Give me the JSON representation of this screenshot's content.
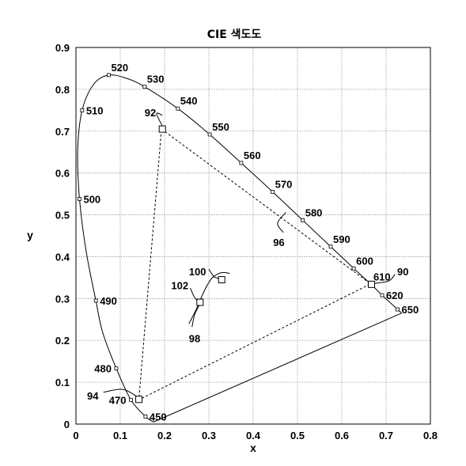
{
  "chart_data": {
    "type": "scatter",
    "title": "CIE 색도도",
    "xlabel": "x",
    "ylabel": "y",
    "xlim": [
      0,
      0.8
    ],
    "ylim": [
      0,
      0.9
    ],
    "x_ticks": [
      {
        "value": 0,
        "label": "0"
      },
      {
        "value": 0.1,
        "label": "0.1"
      },
      {
        "value": 0.2,
        "label": "0.2"
      },
      {
        "value": 0.3,
        "label": "0.3"
      },
      {
        "value": 0.4,
        "label": "0.4"
      },
      {
        "value": 0.5,
        "label": "0.5"
      },
      {
        "value": 0.6,
        "label": "0.6"
      },
      {
        "value": 0.7,
        "label": "0.7"
      },
      {
        "value": 0.8,
        "label": "0.8"
      }
    ],
    "y_ticks": [
      {
        "value": 0,
        "label": "0"
      },
      {
        "value": 0.1,
        "label": "0.1"
      },
      {
        "value": 0.2,
        "label": "0.2"
      },
      {
        "value": 0.3,
        "label": "0.3"
      },
      {
        "value": 0.4,
        "label": "0.4"
      },
      {
        "value": 0.5,
        "label": "0.5"
      },
      {
        "value": 0.6,
        "label": "0.6"
      },
      {
        "value": 0.7,
        "label": "0.7"
      },
      {
        "value": 0.8,
        "label": "0.8"
      },
      {
        "value": 0.9,
        "label": "0.9"
      }
    ],
    "grid": true,
    "spectral_locus": [
      {
        "label": "450",
        "x": 0.157,
        "y": 0.018,
        "side": "right"
      },
      {
        "label": "470",
        "x": 0.124,
        "y": 0.058,
        "side": "left"
      },
      {
        "label": "480",
        "x": 0.091,
        "y": 0.133,
        "side": "left"
      },
      {
        "label": "490",
        "x": 0.045,
        "y": 0.295,
        "side": "right"
      },
      {
        "label": "500",
        "x": 0.008,
        "y": 0.538,
        "side": "right"
      },
      {
        "label": "510",
        "x": 0.014,
        "y": 0.75,
        "side": "right"
      },
      {
        "label": "520",
        "x": 0.074,
        "y": 0.834,
        "side": "above"
      },
      {
        "label": "530",
        "x": 0.155,
        "y": 0.806,
        "side": "above"
      },
      {
        "label": "540",
        "x": 0.23,
        "y": 0.754,
        "side": "above"
      },
      {
        "label": "550",
        "x": 0.302,
        "y": 0.692,
        "side": "above"
      },
      {
        "label": "560",
        "x": 0.373,
        "y": 0.624,
        "side": "above"
      },
      {
        "label": "570",
        "x": 0.444,
        "y": 0.555,
        "side": "above"
      },
      {
        "label": "580",
        "x": 0.512,
        "y": 0.487,
        "side": "above"
      },
      {
        "label": "590",
        "x": 0.575,
        "y": 0.424,
        "side": "above"
      },
      {
        "label": "600",
        "x": 0.627,
        "y": 0.372,
        "side": "above"
      },
      {
        "label": "610",
        "x": 0.666,
        "y": 0.334,
        "side": "above"
      },
      {
        "label": "620",
        "x": 0.691,
        "y": 0.308,
        "side": "right"
      },
      {
        "label": "650",
        "x": 0.726,
        "y": 0.274,
        "side": "right"
      }
    ],
    "locus_curve": [
      [
        0.175,
        0.005
      ],
      [
        0.157,
        0.018
      ],
      [
        0.124,
        0.058
      ],
      [
        0.091,
        0.133
      ],
      [
        0.06,
        0.22
      ],
      [
        0.045,
        0.295
      ],
      [
        0.023,
        0.413
      ],
      [
        0.008,
        0.538
      ],
      [
        0.004,
        0.655
      ],
      [
        0.014,
        0.75
      ],
      [
        0.04,
        0.812
      ],
      [
        0.074,
        0.834
      ],
      [
        0.115,
        0.826
      ],
      [
        0.155,
        0.806
      ],
      [
        0.23,
        0.754
      ],
      [
        0.302,
        0.692
      ],
      [
        0.373,
        0.624
      ],
      [
        0.444,
        0.555
      ],
      [
        0.512,
        0.487
      ],
      [
        0.575,
        0.424
      ],
      [
        0.627,
        0.372
      ],
      [
        0.666,
        0.334
      ],
      [
        0.691,
        0.308
      ],
      [
        0.726,
        0.274
      ],
      [
        0.735,
        0.265
      ]
    ],
    "gamut_triangle": [
      {
        "ref": "92",
        "x": 0.193,
        "y": 0.705
      },
      {
        "ref": "90",
        "x": 0.665,
        "y": 0.335
      },
      {
        "ref": "94",
        "x": 0.142,
        "y": 0.058
      }
    ],
    "reference_labels": [
      {
        "label": "92",
        "at": [
          0.155,
          0.745
        ],
        "leader": [
          [
            0.195,
            0.738
          ],
          [
            0.182,
            0.742
          ],
          [
            0.195,
            0.712
          ]
        ]
      },
      {
        "label": "90",
        "at": [
          0.725,
          0.365
        ],
        "leader": [
          [
            0.72,
            0.358
          ],
          [
            0.706,
            0.342
          ],
          [
            0.672,
            0.336
          ]
        ]
      },
      {
        "label": "94",
        "at": [
          0.025,
          0.068
        ],
        "leader": [
          [
            0.062,
            0.076
          ],
          [
            0.105,
            0.083
          ],
          [
            0.138,
            0.066
          ]
        ]
      },
      {
        "label": "96",
        "at": [
          0.445,
          0.435
        ],
        "leader": [
          [
            0.468,
            0.458
          ],
          [
            0.455,
            0.48
          ],
          [
            0.474,
            0.506
          ]
        ]
      },
      {
        "label": "100",
        "at": [
          0.255,
          0.365
        ],
        "leader": [
          [
            0.3,
            0.37
          ],
          [
            0.312,
            0.352
          ],
          [
            0.326,
            0.347
          ]
        ]
      },
      {
        "label": "102",
        "at": [
          0.215,
          0.332
        ],
        "leader": [
          [
            0.258,
            0.325
          ],
          [
            0.268,
            0.302
          ],
          [
            0.278,
            0.291
          ]
        ]
      },
      {
        "label": "98",
        "at": [
          0.255,
          0.205
        ],
        "leader": [
          [
            0.262,
            0.232
          ],
          [
            0.268,
            0.262
          ],
          [
            0.279,
            0.286
          ]
        ]
      }
    ],
    "markers": [
      {
        "ref": "92",
        "x": 0.195,
        "y": 0.705
      },
      {
        "ref": "90",
        "x": 0.667,
        "y": 0.334
      },
      {
        "ref": "94",
        "x": 0.142,
        "y": 0.059
      },
      {
        "ref": "100",
        "x": 0.329,
        "y": 0.345
      },
      {
        "ref": "102",
        "x": 0.28,
        "y": 0.291
      }
    ],
    "curve_98": [
      [
        0.255,
        0.24
      ],
      [
        0.272,
        0.275
      ],
      [
        0.286,
        0.31
      ],
      [
        0.298,
        0.335
      ],
      [
        0.31,
        0.352
      ],
      [
        0.33,
        0.362
      ],
      [
        0.347,
        0.36
      ]
    ]
  }
}
